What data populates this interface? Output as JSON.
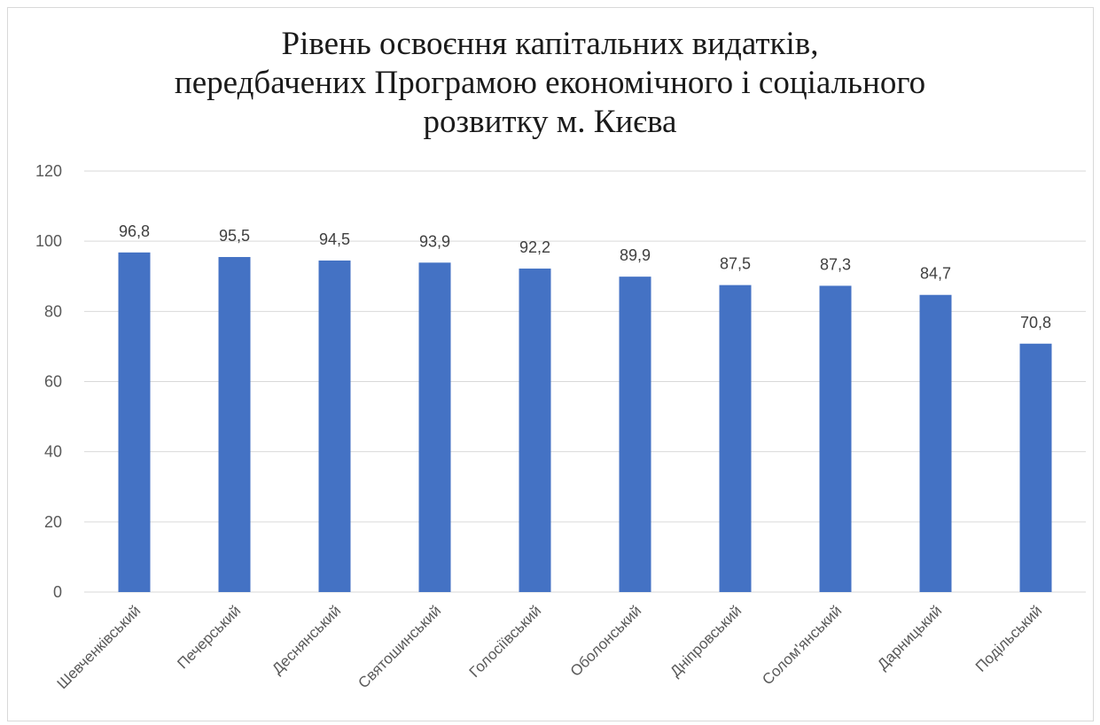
{
  "chart_data": {
    "type": "bar",
    "title_lines": [
      "Рівень освоєння капітальних видатків,",
      "передбачених Програмою економічного і соціального",
      "розвитку м. Києва"
    ],
    "xlabel": "",
    "ylabel": "",
    "categories": [
      "Шевченківський",
      "Печерський",
      "Деснянський",
      "Святошинський",
      "Голосіївський",
      "Оболонський",
      "Дніпровський",
      "Солом'янський",
      "Дарницький",
      "Подільський"
    ],
    "values": [
      96.8,
      95.5,
      94.5,
      93.9,
      92.2,
      89.9,
      87.5,
      87.3,
      84.7,
      70.8
    ],
    "data_labels": [
      "96,8",
      "95,5",
      "94,5",
      "93,9",
      "92,2",
      "89,9",
      "87,5",
      "87,3",
      "84,7",
      "70,8"
    ],
    "ylim": [
      0,
      120
    ],
    "yticks": [
      0,
      20,
      40,
      60,
      80,
      100,
      120
    ],
    "grid": true,
    "legend": "none",
    "colors": {
      "bar": "#4472C4",
      "grid": "#d9d9d9"
    }
  }
}
